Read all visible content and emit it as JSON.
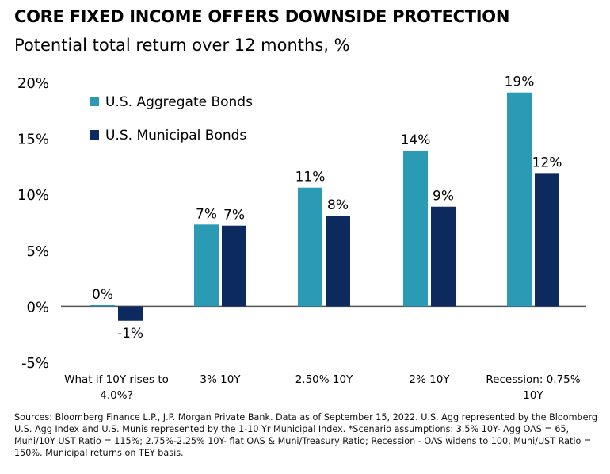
{
  "title": "CORE FIXED INCOME OFFERS DOWNSIDE PROTECTION",
  "subtitle": "Potential total return over 12 months, %",
  "colors": {
    "agg": "#2b9bb5",
    "muni": "#0c2a5e",
    "axis": "#555555",
    "background": "#ffffff"
  },
  "chart_data": {
    "type": "bar",
    "title": "Potential total return over 12 months, %",
    "xlabel": "",
    "ylabel": "",
    "ylim": [
      -5,
      20
    ],
    "yticks": [
      "20%",
      "15%",
      "10%",
      "5%",
      "0%",
      "-5%"
    ],
    "ytick_values": [
      20,
      15,
      10,
      5,
      0,
      -5
    ],
    "categories": [
      [
        "What if 10Y rises to",
        "4.0%?"
      ],
      [
        "3% 10Y"
      ],
      [
        "2.50% 10Y"
      ],
      [
        "2% 10Y"
      ],
      [
        "Recession: 0.75%",
        "10Y"
      ]
    ],
    "series": [
      {
        "name": "U.S. Aggregate Bonds",
        "color": "#2b9bb5",
        "values": [
          0.1,
          7.3,
          10.6,
          13.9,
          19.1
        ],
        "labels": [
          "0%",
          "7%",
          "11%",
          "14%",
          "19%"
        ]
      },
      {
        "name": "U.S. Municipal Bonds",
        "color": "#0c2a5e",
        "values": [
          -1.3,
          7.2,
          8.1,
          8.9,
          11.9
        ],
        "labels": [
          "-1%",
          "7%",
          "8%",
          "9%",
          "12%"
        ]
      }
    ],
    "legend_position": "top-left"
  },
  "footnote": "Sources: Bloomberg Finance L.P., J.P. Morgan Private Bank. Data as of September 15, 2022. U.S. Agg represented by the Bloomberg U.S. Agg Index and U.S. Munis represented by the 1-10 Yr Municipal Index. *Scenario assumptions: 3.5% 10Y- Agg OAS = 65, Muni/10Y UST Ratio = 115%; 2.75%-2.25% 10Y- flat OAS & Muni/Treasury Ratio; Recession - OAS widens to 100, Muni/UST Ratio = 150%. Municipal returns on TEY basis."
}
